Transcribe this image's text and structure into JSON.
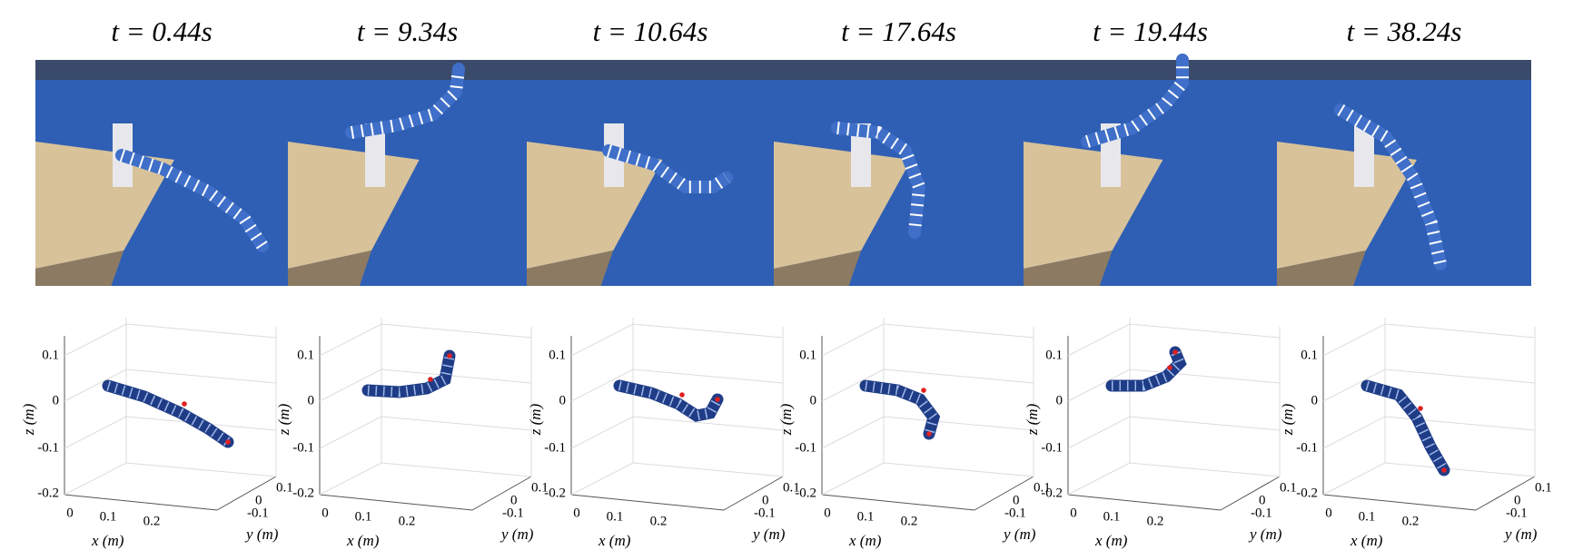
{
  "panels": [
    {
      "time": "t = 0.44s"
    },
    {
      "time": "t = 9.34s"
    },
    {
      "time": "t = 10.64s"
    },
    {
      "time": "t = 17.64s"
    },
    {
      "time": "t = 19.44s"
    },
    {
      "time": "t = 38.24s"
    }
  ],
  "axes": {
    "z_label": "z (m)",
    "x_label": "x (m)",
    "y_label": "y (m)",
    "z_ticks": [
      "0.1",
      "0",
      "-0.1",
      "-0.2"
    ],
    "x_ticks": [
      "0",
      "0.1",
      "0.2"
    ],
    "y_ticks": [
      "-0.1",
      "0",
      "0.1"
    ]
  }
}
